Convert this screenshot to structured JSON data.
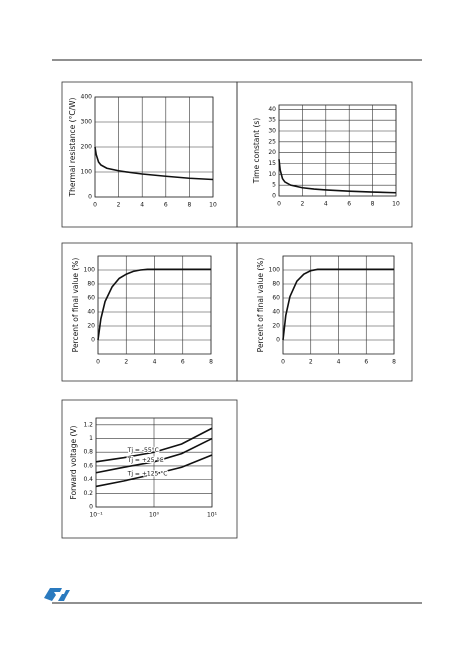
{
  "chart_data": [
    {
      "type": "line",
      "ylabel": "Thermal resistance (°C/W)",
      "x": [
        0,
        0.1,
        0.3,
        0.5,
        1,
        2,
        3,
        4,
        6,
        8,
        10
      ],
      "values": [
        200,
        170,
        140,
        128,
        115,
        105,
        98,
        92,
        83,
        75,
        70
      ],
      "xlim": [
        0,
        10
      ],
      "ylim": [
        0,
        400
      ],
      "xticks": [
        0,
        2,
        4,
        6,
        8,
        10
      ],
      "yticks": [
        0,
        100,
        200,
        300,
        400
      ],
      "grid": true,
      "color": "#111111"
    },
    {
      "type": "line",
      "ylabel": "Time constant (s)",
      "x": [
        0,
        0.1,
        0.3,
        0.5,
        1,
        2,
        3,
        4,
        6,
        8,
        10
      ],
      "values": [
        17,
        12,
        8,
        6.5,
        5,
        3.8,
        3.2,
        2.8,
        2.2,
        1.8,
        1.5
      ],
      "xlim": [
        0,
        10
      ],
      "ylim": [
        0,
        42
      ],
      "xticks": [
        0,
        2,
        4,
        6,
        8,
        10
      ],
      "yticks": [
        0,
        5,
        10,
        15,
        20,
        25,
        30,
        35,
        40
      ],
      "grid": true,
      "color": "#111111"
    },
    {
      "type": "line",
      "ylabel": "Percent of final value (%)",
      "x": [
        0,
        0.2,
        0.5,
        1,
        1.5,
        2,
        2.5,
        3,
        3.5,
        8
      ],
      "values": [
        0,
        30,
        55,
        76,
        88,
        94,
        98,
        100,
        101,
        101
      ],
      "xlim": [
        0,
        8
      ],
      "ylim": [
        -20,
        120
      ],
      "xticks": [
        0,
        2,
        4,
        6,
        8
      ],
      "yticks": [
        0,
        20,
        40,
        60,
        80,
        100
      ],
      "grid": true,
      "color": "#111111"
    },
    {
      "type": "line",
      "ylabel": "Percent of final value (%)",
      "x": [
        0,
        0.2,
        0.5,
        1,
        1.5,
        2,
        2.5,
        8
      ],
      "values": [
        0,
        35,
        62,
        84,
        94,
        99,
        101,
        101
      ],
      "xlim": [
        0,
        8
      ],
      "ylim": [
        -20,
        120
      ],
      "xticks": [
        0,
        2,
        4,
        6,
        8
      ],
      "yticks": [
        0,
        20,
        40,
        60,
        80,
        100
      ],
      "grid": true,
      "color": "#111111"
    },
    {
      "type": "line",
      "ylabel": "Forward voltage (V)",
      "xscale": "log",
      "x": [
        0.1,
        0.3,
        1,
        3,
        10
      ],
      "series": [
        {
          "name": "Tj = -55°C",
          "color": "#111111",
          "values": [
            0.66,
            0.72,
            0.8,
            0.92,
            1.15
          ]
        },
        {
          "name": "Tj = +25 °C",
          "color": "#111111",
          "values": [
            0.5,
            0.58,
            0.66,
            0.78,
            1.0
          ]
        },
        {
          "name": "Tj = +125 °C",
          "color": "#111111",
          "values": [
            0.3,
            0.38,
            0.48,
            0.58,
            0.76
          ]
        }
      ],
      "xlim": [
        0.1,
        10
      ],
      "ylim": [
        0,
        1.3
      ],
      "xticks": [
        {
          "value": 0.1,
          "label": "10⁻¹"
        },
        {
          "value": 1,
          "label": "10⁰"
        },
        {
          "value": 10,
          "label": "10¹"
        }
      ],
      "yticks": [
        0,
        0.2,
        0.4,
        0.6,
        0.8,
        1.0,
        1.2
      ],
      "grid": true
    }
  ]
}
